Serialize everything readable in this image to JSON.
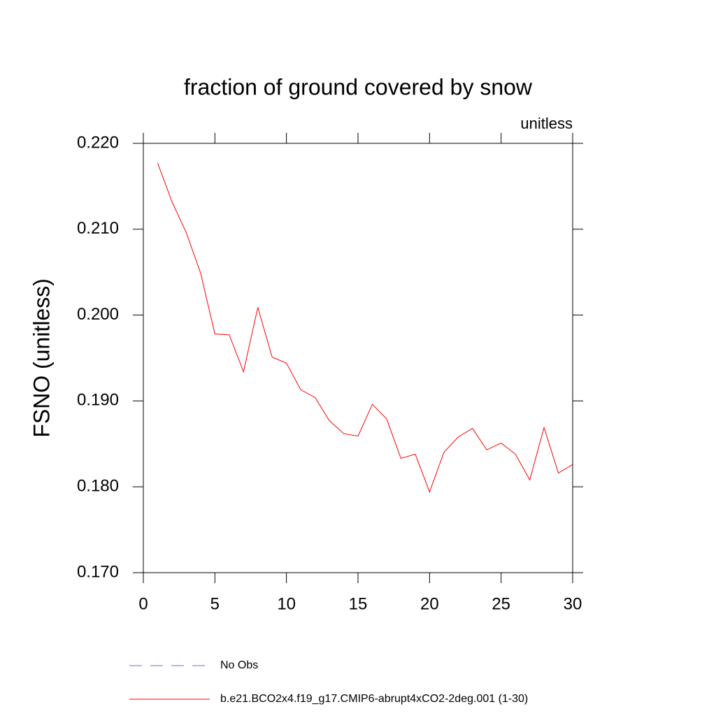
{
  "chart_data": {
    "type": "line",
    "title": "fraction of ground covered by snow",
    "subtitle": "unitless",
    "y_label": "FSNO  (unitless)",
    "x": [
      1,
      2,
      3,
      4,
      5,
      6,
      7,
      8,
      9,
      10,
      11,
      12,
      13,
      14,
      15,
      16,
      17,
      18,
      19,
      20,
      21,
      22,
      23,
      24,
      25,
      26,
      27,
      28,
      29,
      30
    ],
    "series": [
      {
        "name": "b.e21.BCO2x4.f19_g17.CMIP6-abrupt4xCO2-2deg.001 (1-30)",
        "color": "#ff0000",
        "values": [
          0.2177,
          0.2132,
          0.2096,
          0.2049,
          0.1978,
          0.1977,
          0.1934,
          0.2009,
          0.1951,
          0.1944,
          0.1913,
          0.1904,
          0.1877,
          0.1862,
          0.1859,
          0.1896,
          0.1879,
          0.1833,
          0.1838,
          0.1794,
          0.184,
          0.1858,
          0.1868,
          0.1843,
          0.1851,
          0.1838,
          0.1808,
          0.1869,
          0.1816,
          0.1826
        ]
      }
    ],
    "extra_legend": {
      "name": "No Obs",
      "color": "#7b68c8",
      "dashed": true
    },
    "xlim": [
      0,
      30
    ],
    "xticks": [
      0,
      5,
      10,
      15,
      20,
      25,
      30
    ],
    "ylim": [
      0.17,
      0.22
    ],
    "yticks": [
      {
        "value": 0.17,
        "label": "0.170"
      },
      {
        "value": 0.18,
        "label": "0.180"
      },
      {
        "value": 0.19,
        "label": "0.190"
      },
      {
        "value": 0.2,
        "label": "0.200"
      },
      {
        "value": 0.21,
        "label": "0.210"
      },
      {
        "value": 0.22,
        "label": "0.220"
      }
    ],
    "grid": false
  }
}
